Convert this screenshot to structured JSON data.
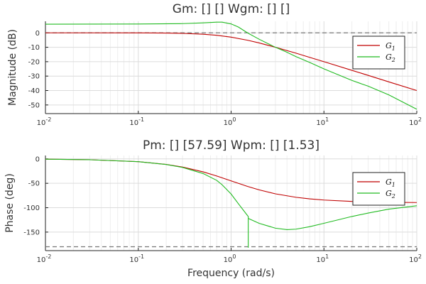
{
  "chart_data": [
    {
      "type": "line",
      "title": "Gm: [] []  Wgm: [] []",
      "xlabel": "",
      "ylabel": "Magnitude (dB)",
      "xscale": "log",
      "xlim": [
        0.01,
        100
      ],
      "ylim": [
        -56,
        8
      ],
      "x_ticks": [
        0.01,
        0.1,
        1,
        10,
        100
      ],
      "x_tick_labels": [
        {
          "base": "10",
          "exp": "-2"
        },
        {
          "base": "10",
          "exp": "-1"
        },
        {
          "base": "10",
          "exp": "0"
        },
        {
          "base": "10",
          "exp": "1"
        },
        {
          "base": "10",
          "exp": "2"
        }
      ],
      "y_ticks": [
        0,
        -10,
        -20,
        -30,
        -40,
        -50
      ],
      "y_tick_labels": [
        "0",
        "-10",
        "-20",
        "-30",
        "-40",
        "-50"
      ],
      "grid": true,
      "reference_line": {
        "y": 0,
        "style": "dashed",
        "color": "#777777"
      },
      "legend": {
        "placement": "top-right",
        "entries": [
          {
            "base": "G",
            "sub": "1"
          },
          {
            "base": "G",
            "sub": "2"
          }
        ]
      },
      "series": [
        {
          "color": "#c00000",
          "x": [
            0.01,
            0.03,
            0.1,
            0.2,
            0.3,
            0.5,
            0.7,
            1,
            1.5,
            2,
            3,
            5,
            7,
            10,
            20,
            30,
            50,
            100
          ],
          "y": [
            0,
            0,
            -0.04,
            -0.17,
            -0.37,
            -0.97,
            -1.7,
            -3,
            -5.1,
            -7,
            -10,
            -14.1,
            -17,
            -20,
            -26,
            -29.5,
            -34,
            -40
          ]
        },
        {
          "color": "#22bb22",
          "x": [
            0.01,
            0.1,
            0.3,
            0.5,
            0.7,
            0.8,
            1,
            1.2,
            1.5,
            2,
            2.5,
            3,
            4,
            5,
            7,
            10,
            20,
            30,
            50,
            100
          ],
          "y": [
            6,
            6.1,
            6.4,
            6.9,
            7.4,
            7.4,
            6.2,
            4,
            0,
            -4.4,
            -7.5,
            -10,
            -13.5,
            -16.5,
            -20.5,
            -25,
            -33,
            -37,
            -43,
            -53
          ]
        }
      ]
    },
    {
      "type": "line",
      "title": "Pm: [] [57.59]  Wpm: [] [1.53]",
      "xlabel": "Frequency (rad/s)",
      "ylabel": "Phase (deg)",
      "xscale": "log",
      "xlim": [
        0.01,
        100
      ],
      "ylim": [
        -188,
        7
      ],
      "x_ticks": [
        0.01,
        0.1,
        1,
        10,
        100
      ],
      "x_tick_labels": [
        {
          "base": "10",
          "exp": "-2"
        },
        {
          "base": "10",
          "exp": "-1"
        },
        {
          "base": "10",
          "exp": "0"
        },
        {
          "base": "10",
          "exp": "1"
        },
        {
          "base": "10",
          "exp": "2"
        }
      ],
      "y_ticks": [
        0,
        -50,
        -100,
        -150
      ],
      "y_tick_labels": [
        "0",
        "-50",
        "-100",
        "-150"
      ],
      "grid": true,
      "reference_line": {
        "y": -180,
        "style": "dashed",
        "color": "#777777"
      },
      "legend": {
        "placement": "top-right",
        "entries": [
          {
            "base": "G",
            "sub": "1"
          },
          {
            "base": "G",
            "sub": "2"
          }
        ]
      },
      "series": [
        {
          "color": "#c00000",
          "x": [
            0.01,
            0.03,
            0.1,
            0.2,
            0.3,
            0.5,
            0.7,
            1,
            1.5,
            2,
            3,
            5,
            7,
            10,
            20,
            50,
            100
          ],
          "y": [
            -0.6,
            -1.7,
            -5.7,
            -11.3,
            -16.7,
            -26.6,
            -35,
            -45,
            -56.3,
            -63.4,
            -71.6,
            -78.7,
            -81.9,
            -84.3,
            -87.1,
            -88.9,
            -89.4
          ]
        },
        {
          "color": "#22bb22",
          "x": [
            0.01,
            0.03,
            0.1,
            0.2,
            0.3,
            0.5,
            0.7,
            0.8,
            1,
            1.2,
            1.5,
            1.53,
            1.53,
            1.53,
            2,
            3,
            4,
            5,
            7,
            10,
            20,
            30,
            50,
            100
          ],
          "y": [
            -0.6,
            -1.7,
            -5.7,
            -11.5,
            -17.5,
            -30,
            -44,
            -53,
            -72,
            -92,
            -116,
            -118,
            -182,
            -122,
            -132,
            -142,
            -145,
            -144,
            -139,
            -132,
            -118,
            -111,
            -103,
            -96
          ]
        }
      ]
    }
  ]
}
